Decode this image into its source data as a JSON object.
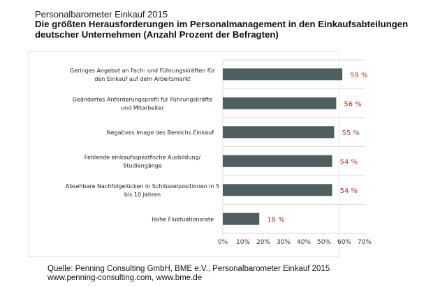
{
  "header": {
    "subtitle": "Personalbarometer Einkauf 2015",
    "title_line1": "Die größten Herausforderungen im Personalmanagement in den Einkaufsabteilungen",
    "title_line2": "deutscher Unternehmen (Anzahl Prozent der Befragten)"
  },
  "footer": {
    "source_line1": "Quelle: Penning Consulting GmbH, BME e.V., Personalbarometer Einkauf 2015",
    "source_line2": "www.penning-consulting.com, www.bme.de"
  },
  "colors": {
    "bar": "#4f5f5f",
    "value_label": "#b03a2e",
    "gridline": "#d9d9d9",
    "axis_text": "#333333"
  },
  "chart_data": {
    "type": "bar",
    "orientation": "horizontal",
    "title": "Die größten Herausforderungen im Personalmanagement in den Einkaufsabteilungen deutscher Unternehmen (Anzahl Prozent der Befragten)",
    "xlabel": "",
    "ylabel": "",
    "categories": [
      [
        "Geringes Angebot an Fach- und Führungskräften für",
        "den Einkauf auf dem Arbeitsmarkt"
      ],
      [
        "Geändertes Anforderungsprofil für Führungskräfte",
        "und Mitarbeiter"
      ],
      [
        "Negatives Image des Bereichs Einkauf"
      ],
      [
        "Fehlende einkaufsspezifische Ausbildung/",
        "Studiengänge"
      ],
      [
        "Absehbare Nachfolgelücken in Schlüsselpositionen in 5",
        "bis 10 Jahren"
      ],
      [
        "Hohe Fluktuationsrate"
      ]
    ],
    "values": [
      59,
      56,
      55,
      54,
      54,
      18
    ],
    "value_labels": [
      "59 %",
      "56 %",
      "55 %",
      "54 %",
      "54 %",
      "18 %"
    ],
    "xlim": [
      0,
      70
    ],
    "xticks": [
      0,
      10,
      20,
      30,
      40,
      50,
      60,
      70
    ],
    "xtick_labels": [
      "0%",
      "10%",
      "20%",
      "30%",
      "40%",
      "50%",
      "60%",
      "70%"
    ],
    "grid": "horizontal separators between categories",
    "legend": "none"
  }
}
